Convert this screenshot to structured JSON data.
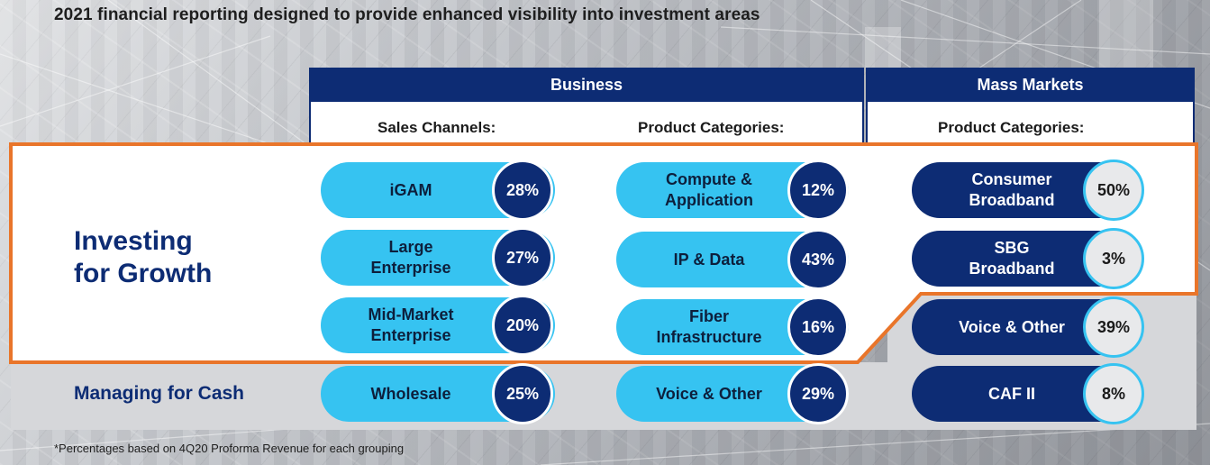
{
  "headline": "2021 financial reporting designed to provide enhanced visibility into investment areas",
  "header": {
    "business": "Business",
    "mass_markets": "Mass Markets"
  },
  "subheader": {
    "sales_channels": "Sales Channels:",
    "business_product_categories": "Product Categories:",
    "mass_product_categories": "Product Categories:"
  },
  "rows": {
    "growth": {
      "line1": "Investing",
      "line2": "for Growth"
    },
    "cash": "Managing for Cash"
  },
  "sales_channels": [
    {
      "label": "iGAM",
      "pct": "28%"
    },
    {
      "label": "Large\nEnterprise",
      "pct": "27%"
    },
    {
      "label": "Mid-Market\nEnterprise",
      "pct": "20%"
    },
    {
      "label": "Wholesale",
      "pct": "25%"
    }
  ],
  "business_product_categories": [
    {
      "label": "Compute &\nApplication",
      "pct": "12%"
    },
    {
      "label": "IP & Data",
      "pct": "43%"
    },
    {
      "label": "Fiber\nInfrastructure",
      "pct": "16%"
    },
    {
      "label": "Voice & Other",
      "pct": "29%"
    }
  ],
  "mass_product_categories": [
    {
      "label": "Consumer\nBroadband",
      "pct": "50%"
    },
    {
      "label": "SBG\nBroadband",
      "pct": "3%"
    },
    {
      "label": "Voice & Other",
      "pct": "39%"
    },
    {
      "label": "CAF II",
      "pct": "8%"
    }
  ],
  "colors": {
    "navy": "#0d2c74",
    "light_blue": "#36c3f1",
    "highlight_orange": "#e9752a",
    "band_gray": "#d6d7da"
  },
  "footnote": "*Percentages based on 4Q20 Proforma Revenue for each grouping"
}
